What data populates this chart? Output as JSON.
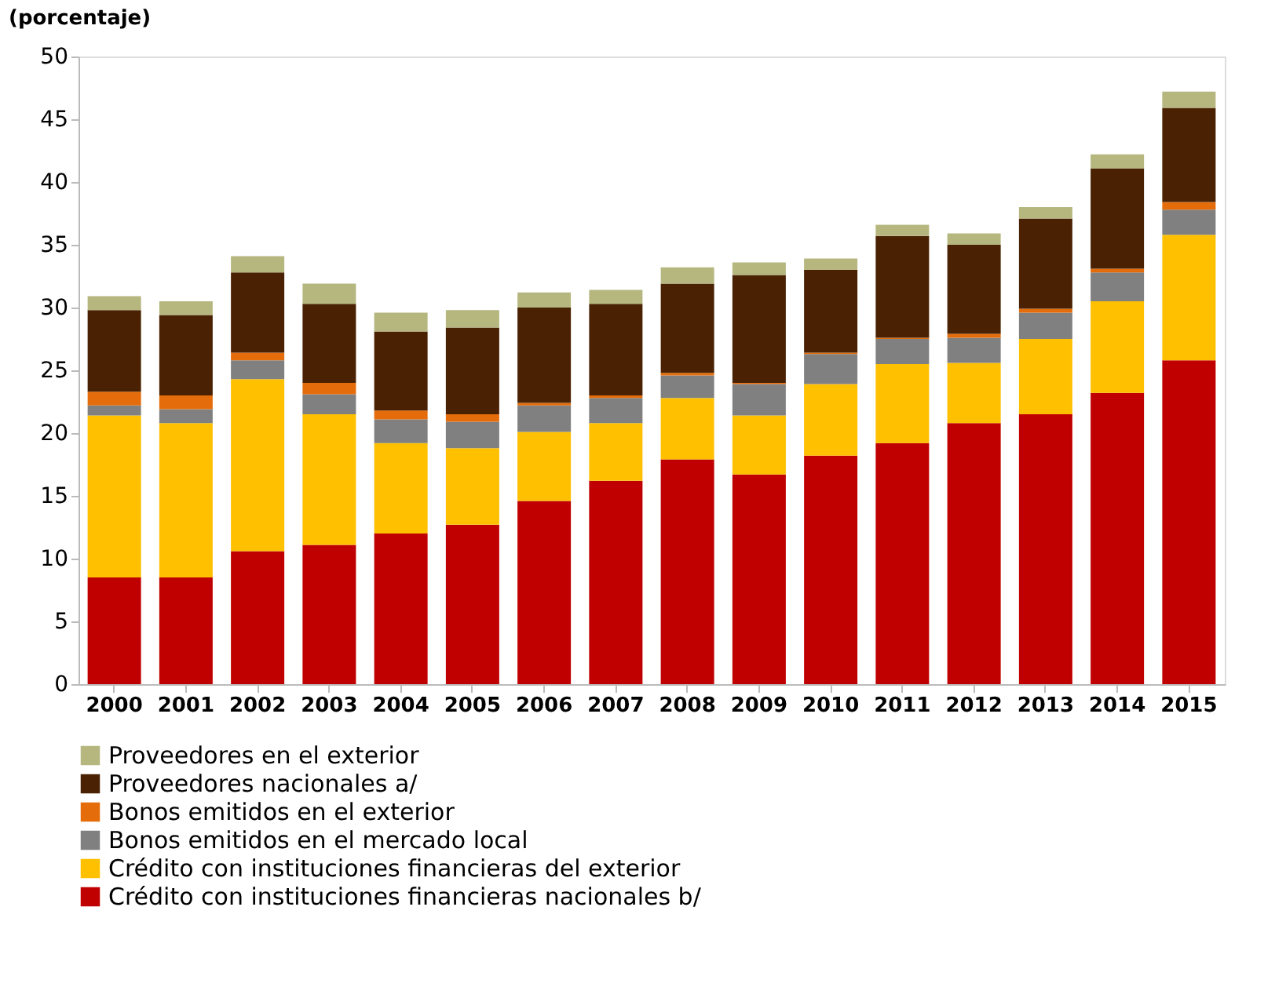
{
  "chart_data": {
    "type": "bar",
    "stacked": true,
    "ylabel": "(porcentaje)",
    "categories": [
      "2000",
      "2001",
      "2002",
      "2003",
      "2004",
      "2005",
      "2006",
      "2007",
      "2008",
      "2009",
      "2010",
      "2011",
      "2012",
      "2013",
      "2014",
      "2015"
    ],
    "ylim": [
      0,
      50
    ],
    "yticks": [
      0,
      5,
      10,
      15,
      20,
      25,
      30,
      35,
      40,
      45,
      50
    ],
    "grid": false,
    "legend": "bottom",
    "series": [
      {
        "name": "Crédito con instituciones financieras nacionales b/",
        "color": "#c00000",
        "values": [
          8.5,
          8.5,
          10.6,
          11.1,
          12.0,
          12.7,
          14.6,
          16.2,
          17.9,
          16.7,
          18.2,
          19.2,
          20.8,
          21.5,
          23.2,
          25.8
        ]
      },
      {
        "name": "Crédito con instituciones financieras del exterior",
        "color": "#ffc000",
        "values": [
          12.9,
          12.3,
          13.7,
          10.4,
          7.2,
          6.1,
          5.5,
          4.6,
          4.9,
          4.7,
          5.7,
          6.3,
          4.8,
          6.0,
          7.3,
          10.0
        ]
      },
      {
        "name": "Bonos emitidos en el mercado local",
        "color": "#808080",
        "values": [
          0.8,
          1.1,
          1.5,
          1.6,
          1.9,
          2.1,
          2.1,
          2.0,
          1.8,
          2.5,
          2.4,
          2.0,
          2.0,
          2.1,
          2.3,
          2.0
        ]
      },
      {
        "name": "Bonos emitidos en el exterior",
        "color": "#e46c0a",
        "values": [
          1.1,
          1.1,
          0.6,
          0.9,
          0.7,
          0.6,
          0.2,
          0.2,
          0.2,
          0.1,
          0.1,
          0.1,
          0.3,
          0.3,
          0.3,
          0.6
        ]
      },
      {
        "name": "Proveedores nacionales a/",
        "color": "#4a2203",
        "values": [
          6.5,
          6.4,
          6.4,
          6.3,
          6.3,
          6.9,
          7.6,
          7.3,
          7.1,
          8.6,
          6.6,
          8.1,
          7.1,
          7.2,
          8.0,
          7.5
        ]
      },
      {
        "name": "Proveedores  en el exterior",
        "color": "#b5b77f",
        "values": [
          1.1,
          1.1,
          1.3,
          1.6,
          1.5,
          1.4,
          1.2,
          1.1,
          1.3,
          1.0,
          0.9,
          0.9,
          0.9,
          0.9,
          1.1,
          1.3
        ]
      }
    ]
  }
}
